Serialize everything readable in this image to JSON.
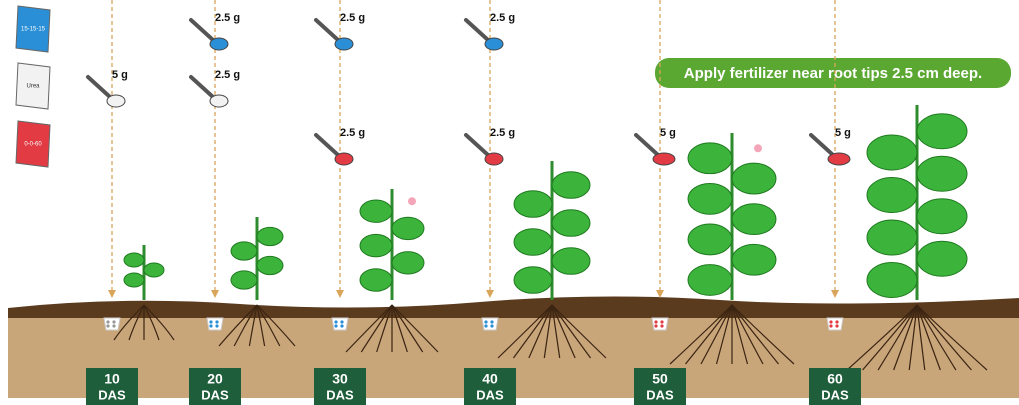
{
  "fertilizers": [
    {
      "label": "15-15-15"
    },
    {
      "label": "Urea"
    },
    {
      "label": "0-0-60"
    }
  ],
  "callout": "Apply fertilizer near root tips 2.5 cm deep.",
  "stages": [
    {
      "day": "10",
      "unit": "DAS",
      "doses": {
        "Urea": "5 g"
      }
    },
    {
      "day": "20",
      "unit": "DAS",
      "doses": {
        "15-15-15": "2.5 g",
        "Urea": "2.5 g"
      }
    },
    {
      "day": "30",
      "unit": "DAS",
      "doses": {
        "15-15-15": "2.5 g",
        "0-0-60": "2.5 g"
      }
    },
    {
      "day": "40",
      "unit": "DAS",
      "doses": {
        "15-15-15": "2.5 g",
        "0-0-60": "2.5 g"
      }
    },
    {
      "day": "50",
      "unit": "DAS",
      "doses": {
        "0-0-60": "5 g"
      }
    },
    {
      "day": "60",
      "unit": "DAS",
      "doses": {
        "0-0-60": "5 g"
      }
    }
  ]
}
